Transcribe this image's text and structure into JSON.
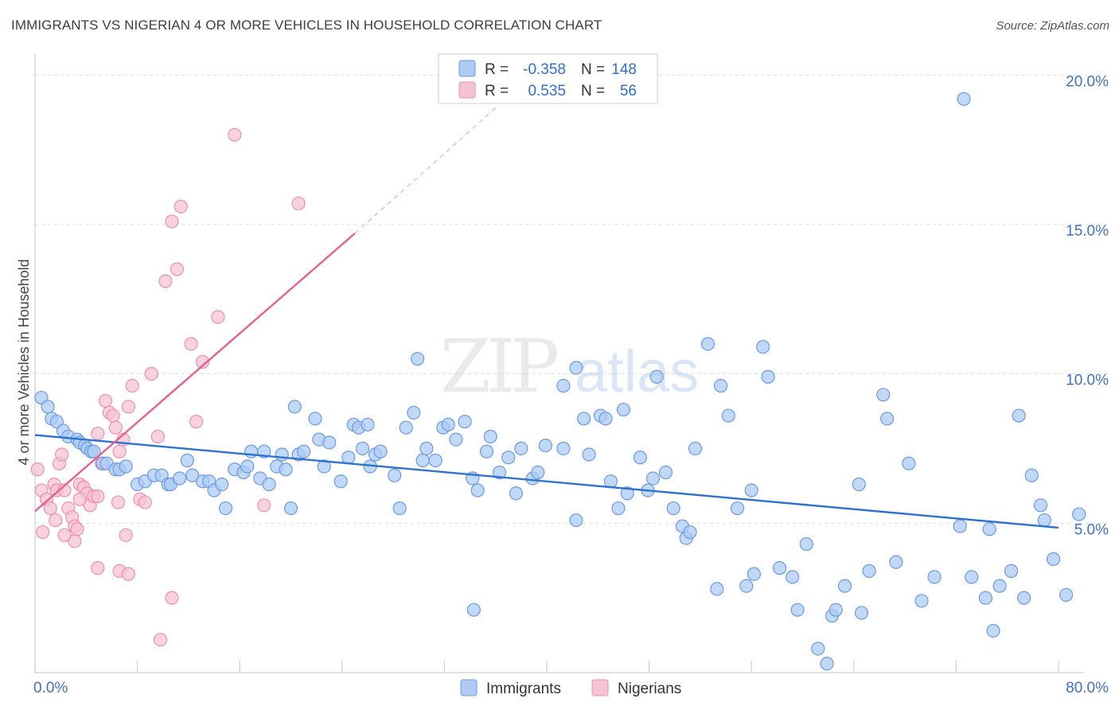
{
  "title": "IMMIGRANTS VS NIGERIAN 4 OR MORE VEHICLES IN HOUSEHOLD CORRELATION CHART",
  "source": "Source: ZipAtlas.com",
  "watermark": {
    "zip": "ZIP",
    "atlas": "atlas"
  },
  "colors": {
    "blue_fill": "#aecbf5",
    "blue_stroke": "#6a9be0",
    "blue_line": "#2c72d2",
    "pink_fill": "#f6c3d3",
    "pink_stroke": "#ec8fae",
    "pink_line": "#e8608c",
    "tick_text": "#3f72c6",
    "grid": "#dddddd"
  },
  "legend": {
    "rows": [
      {
        "r_label": "R =",
        "r_value": "-0.358",
        "n_label": "N =",
        "n_value": "148",
        "series": "Immigrants"
      },
      {
        "r_label": "R =",
        "r_value": "0.535",
        "n_label": "N =",
        "n_value": "56",
        "series": "Nigerians"
      }
    ]
  },
  "bottom_legend": [
    "Immigrants",
    "Nigerians"
  ],
  "chart_data": {
    "type": "scatter",
    "title": "IMMIGRANTS VS NIGERIAN 4 OR MORE VEHICLES IN HOUSEHOLD CORRELATION CHART",
    "xlabel": "",
    "ylabel": "4 or more Vehicles in Household",
    "xlim": [
      0,
      80
    ],
    "ylim": [
      0,
      20.7
    ],
    "x_tick_labels": [
      "0.0%",
      "80.0%"
    ],
    "y_ticks": [
      5,
      10,
      15,
      20
    ],
    "y_tick_labels": [
      "5.0%",
      "10.0%",
      "15.0%",
      "20.0%"
    ],
    "series": [
      {
        "name": "Immigrants",
        "color": "blue",
        "trend": {
          "x0": 0,
          "y0": 7.95,
          "x1": 80,
          "y1": 4.85
        },
        "points": [
          [
            0.5,
            9.2
          ],
          [
            1.0,
            8.9
          ],
          [
            1.3,
            8.5
          ],
          [
            1.7,
            8.4
          ],
          [
            2.2,
            8.1
          ],
          [
            2.6,
            7.9
          ],
          [
            3.3,
            7.8
          ],
          [
            3.5,
            7.7
          ],
          [
            3.9,
            7.6
          ],
          [
            4.1,
            7.5
          ],
          [
            4.4,
            7.4
          ],
          [
            4.6,
            7.4
          ],
          [
            5.3,
            7.0
          ],
          [
            5.6,
            7.0
          ],
          [
            6.3,
            6.8
          ],
          [
            6.6,
            6.8
          ],
          [
            7.1,
            6.9
          ],
          [
            8.0,
            6.3
          ],
          [
            8.6,
            6.4
          ],
          [
            9.3,
            6.6
          ],
          [
            9.9,
            6.6
          ],
          [
            10.4,
            6.3
          ],
          [
            10.6,
            6.3
          ],
          [
            11.3,
            6.5
          ],
          [
            11.9,
            7.1
          ],
          [
            12.3,
            6.6
          ],
          [
            13.1,
            6.4
          ],
          [
            13.6,
            6.4
          ],
          [
            14.0,
            6.1
          ],
          [
            14.6,
            6.3
          ],
          [
            14.9,
            5.5
          ],
          [
            15.6,
            6.8
          ],
          [
            16.3,
            6.7
          ],
          [
            16.6,
            6.9
          ],
          [
            16.9,
            7.4
          ],
          [
            17.6,
            6.5
          ],
          [
            17.9,
            7.4
          ],
          [
            18.3,
            6.3
          ],
          [
            18.9,
            6.9
          ],
          [
            19.3,
            7.3
          ],
          [
            19.6,
            6.8
          ],
          [
            20.0,
            5.5
          ],
          [
            20.6,
            7.3
          ],
          [
            21.0,
            7.4
          ],
          [
            21.9,
            8.5
          ],
          [
            22.2,
            7.8
          ],
          [
            22.6,
            6.9
          ],
          [
            23.0,
            7.7
          ],
          [
            23.9,
            6.4
          ],
          [
            24.5,
            7.2
          ],
          [
            24.9,
            8.3
          ],
          [
            25.3,
            8.2
          ],
          [
            25.6,
            7.5
          ],
          [
            26.2,
            6.9
          ],
          [
            26.6,
            7.3
          ],
          [
            27.0,
            7.4
          ],
          [
            28.1,
            6.6
          ],
          [
            28.5,
            5.5
          ],
          [
            29.0,
            8.2
          ],
          [
            29.6,
            8.7
          ],
          [
            30.3,
            7.1
          ],
          [
            30.6,
            7.5
          ],
          [
            31.3,
            7.1
          ],
          [
            31.9,
            8.2
          ],
          [
            32.3,
            8.3
          ],
          [
            32.9,
            7.8
          ],
          [
            33.6,
            8.4
          ],
          [
            34.2,
            6.5
          ],
          [
            34.6,
            6.1
          ],
          [
            35.3,
            7.4
          ],
          [
            35.6,
            7.9
          ],
          [
            36.3,
            6.7
          ],
          [
            37.0,
            7.2
          ],
          [
            37.6,
            6.0
          ],
          [
            38.0,
            7.5
          ],
          [
            38.9,
            6.5
          ],
          [
            39.3,
            6.7
          ],
          [
            39.9,
            7.6
          ],
          [
            41.3,
            7.5
          ],
          [
            42.3,
            5.1
          ],
          [
            42.9,
            8.5
          ],
          [
            43.3,
            7.3
          ],
          [
            44.2,
            8.6
          ],
          [
            44.6,
            8.5
          ],
          [
            45.0,
            6.4
          ],
          [
            45.6,
            5.5
          ],
          [
            46.0,
            8.8
          ],
          [
            46.3,
            6.0
          ],
          [
            47.3,
            7.2
          ],
          [
            47.9,
            6.1
          ],
          [
            48.3,
            6.5
          ],
          [
            49.3,
            6.7
          ],
          [
            49.9,
            5.5
          ],
          [
            50.6,
            4.9
          ],
          [
            50.9,
            4.5
          ],
          [
            51.2,
            4.7
          ],
          [
            51.6,
            7.5
          ],
          [
            52.6,
            11.0
          ],
          [
            53.3,
            2.8
          ],
          [
            53.6,
            9.6
          ],
          [
            54.2,
            8.6
          ],
          [
            54.9,
            5.5
          ],
          [
            55.6,
            2.9
          ],
          [
            56.0,
            6.1
          ],
          [
            56.2,
            3.3
          ],
          [
            56.9,
            10.9
          ],
          [
            57.3,
            9.9
          ],
          [
            58.2,
            3.5
          ],
          [
            59.2,
            3.2
          ],
          [
            59.6,
            2.1
          ],
          [
            60.3,
            4.3
          ],
          [
            61.2,
            0.8
          ],
          [
            61.9,
            0.3
          ],
          [
            62.3,
            1.9
          ],
          [
            62.6,
            2.1
          ],
          [
            63.3,
            2.9
          ],
          [
            64.4,
            6.3
          ],
          [
            64.6,
            2.0
          ],
          [
            65.2,
            3.4
          ],
          [
            66.3,
            9.3
          ],
          [
            66.6,
            8.5
          ],
          [
            67.3,
            3.7
          ],
          [
            68.3,
            7.0
          ],
          [
            69.3,
            2.4
          ],
          [
            70.3,
            3.2
          ],
          [
            72.3,
            4.9
          ],
          [
            73.2,
            3.2
          ],
          [
            74.3,
            2.5
          ],
          [
            74.6,
            4.8
          ],
          [
            74.9,
            1.4
          ],
          [
            75.4,
            2.9
          ],
          [
            76.3,
            3.4
          ],
          [
            76.9,
            8.6
          ],
          [
            77.3,
            2.5
          ],
          [
            77.9,
            6.6
          ],
          [
            78.6,
            5.6
          ],
          [
            78.9,
            5.1
          ],
          [
            79.6,
            3.8
          ],
          [
            80.6,
            2.6
          ],
          [
            81.6,
            5.3
          ],
          [
            72.6,
            19.2
          ],
          [
            29.9,
            10.5
          ],
          [
            42.3,
            10.2
          ],
          [
            41.3,
            9.6
          ],
          [
            34.3,
            2.1
          ],
          [
            26.0,
            8.3
          ],
          [
            20.3,
            8.9
          ],
          [
            48.6,
            9.9
          ]
        ]
      },
      {
        "name": "Nigerians",
        "color": "pink",
        "trend": {
          "x0": 0,
          "y0": 5.4,
          "x1": 25,
          "y1": 14.7
        },
        "trend_dashed_to": {
          "x": 36,
          "y": 18.9
        },
        "points": [
          [
            0.2,
            6.8
          ],
          [
            0.5,
            6.1
          ],
          [
            0.6,
            4.7
          ],
          [
            0.9,
            5.8
          ],
          [
            1.2,
            5.5
          ],
          [
            1.5,
            6.3
          ],
          [
            1.7,
            6.1
          ],
          [
            1.9,
            7.0
          ],
          [
            2.1,
            7.3
          ],
          [
            2.3,
            6.1
          ],
          [
            2.6,
            5.5
          ],
          [
            2.9,
            5.2
          ],
          [
            3.1,
            4.9
          ],
          [
            3.3,
            4.8
          ],
          [
            3.5,
            6.3
          ],
          [
            3.8,
            6.2
          ],
          [
            4.1,
            6.0
          ],
          [
            4.3,
            5.6
          ],
          [
            4.6,
            5.9
          ],
          [
            4.9,
            8.0
          ],
          [
            5.2,
            7.0
          ],
          [
            5.5,
            9.1
          ],
          [
            5.8,
            8.7
          ],
          [
            6.1,
            8.6
          ],
          [
            6.3,
            8.2
          ],
          [
            6.6,
            7.4
          ],
          [
            6.9,
            7.8
          ],
          [
            7.3,
            8.9
          ],
          [
            7.6,
            9.6
          ],
          [
            8.2,
            5.8
          ],
          [
            8.6,
            5.7
          ],
          [
            9.1,
            10.0
          ],
          [
            9.6,
            7.9
          ],
          [
            10.2,
            13.1
          ],
          [
            10.7,
            15.1
          ],
          [
            11.1,
            13.5
          ],
          [
            11.4,
            15.6
          ],
          [
            12.2,
            11.0
          ],
          [
            12.6,
            8.4
          ],
          [
            13.1,
            10.4
          ],
          [
            14.3,
            11.9
          ],
          [
            15.6,
            18.0
          ],
          [
            17.9,
            5.6
          ],
          [
            20.6,
            15.7
          ],
          [
            3.1,
            4.4
          ],
          [
            4.9,
            3.5
          ],
          [
            6.6,
            3.4
          ],
          [
            7.3,
            3.3
          ],
          [
            10.7,
            2.5
          ],
          [
            9.8,
            1.1
          ],
          [
            7.1,
            4.6
          ],
          [
            3.5,
            5.8
          ],
          [
            2.3,
            4.6
          ],
          [
            1.6,
            5.1
          ],
          [
            4.9,
            5.9
          ],
          [
            6.5,
            5.7
          ]
        ]
      }
    ]
  }
}
